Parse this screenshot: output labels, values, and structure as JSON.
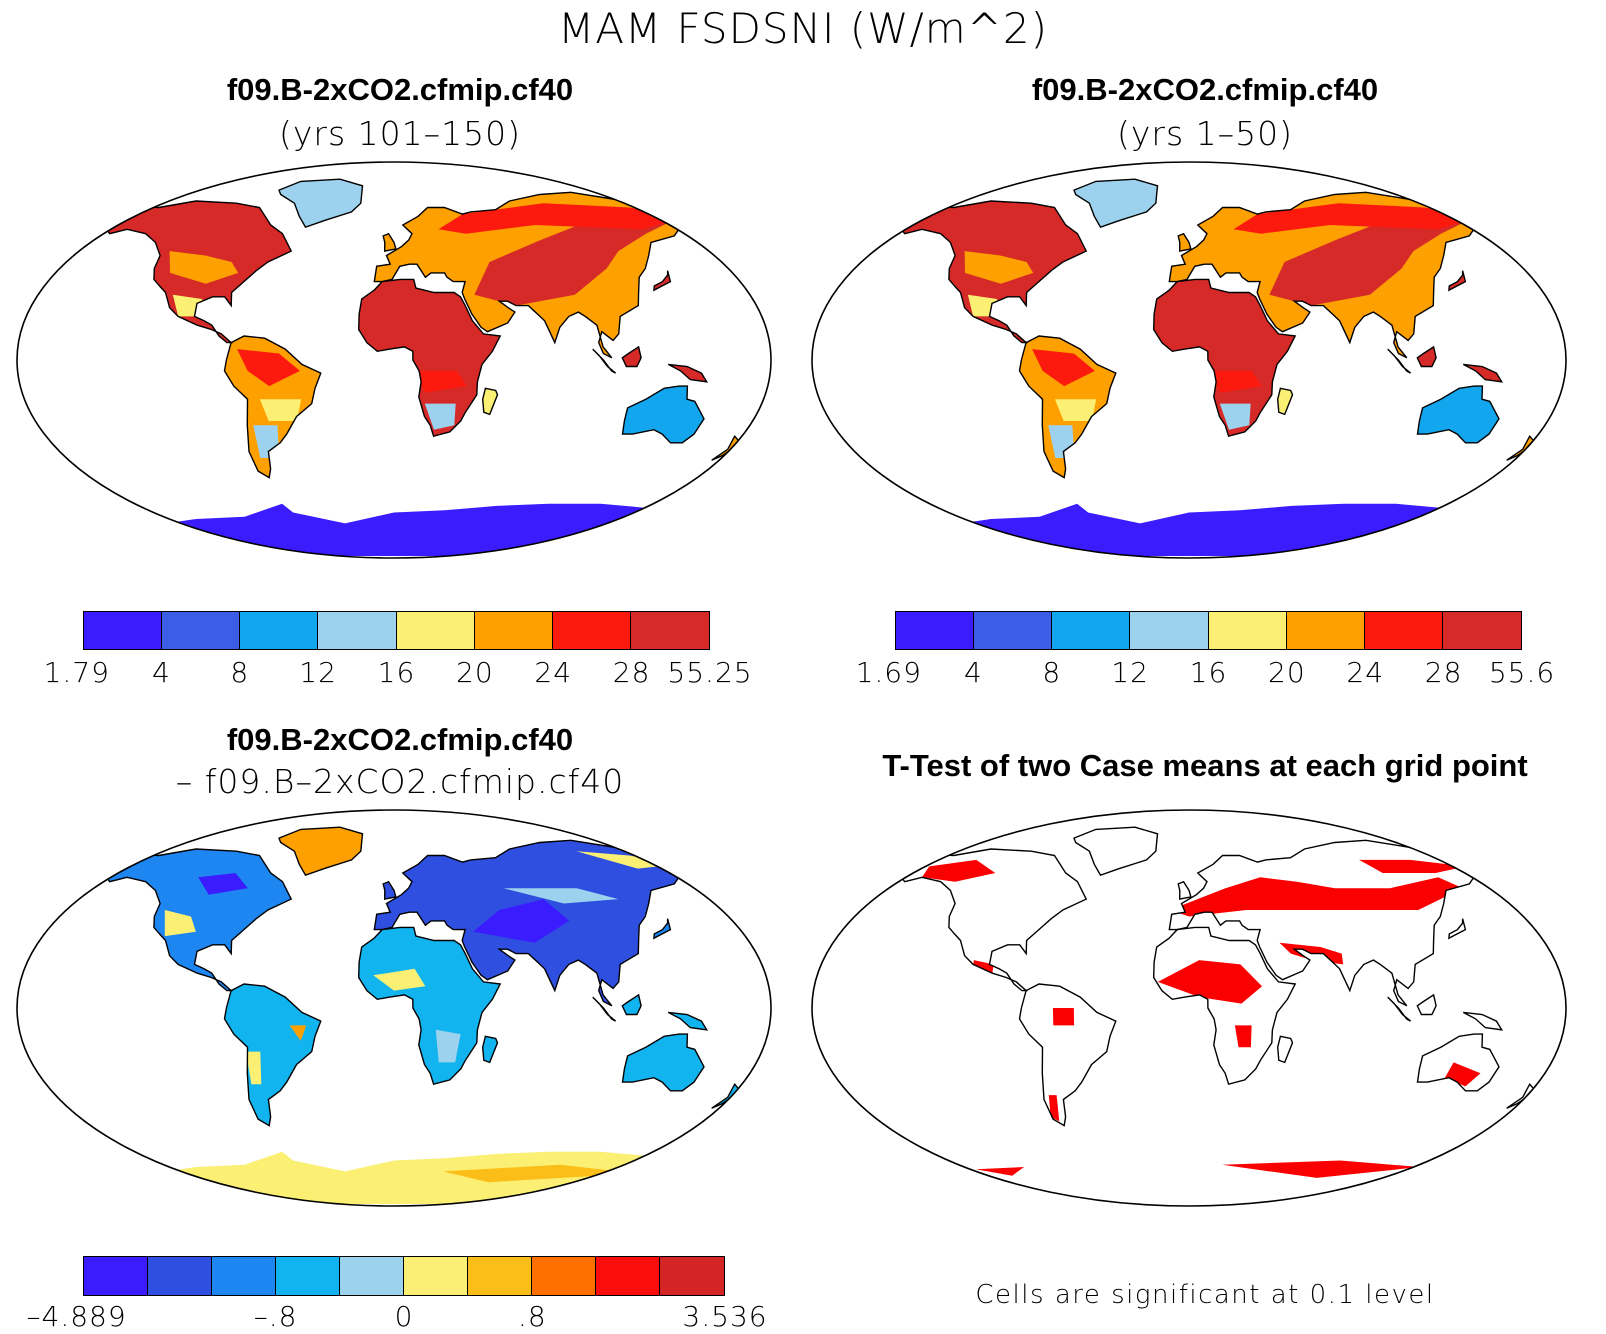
{
  "title": "MAM FSDSNI (W/m^2)",
  "panels": [
    {
      "title": "f09.B-2xCO2.cfmip.cf40",
      "subtitle": "(yrs 101–150)",
      "legend": {
        "colors": [
          "#3a1cff",
          "#3c5ee6",
          "#12a6ee",
          "#9dd2ee",
          "#fbf073",
          "#fea000",
          "#fb1a0d",
          "#d62a28"
        ],
        "labels": [
          "1.79",
          "4",
          "8",
          "12",
          "16",
          "20",
          "24",
          "28",
          "55.25"
        ]
      }
    },
    {
      "title": "f09.B-2xCO2.cfmip.cf40",
      "subtitle": "(yrs 1–50)",
      "legend": {
        "colors": [
          "#3a1cff",
          "#3c5ee6",
          "#12a6ee",
          "#9dd2ee",
          "#fbf073",
          "#fea000",
          "#fb1a0d",
          "#d62a28"
        ],
        "labels": [
          "1.69",
          "4",
          "8",
          "12",
          "16",
          "20",
          "24",
          "28",
          "55.6"
        ]
      }
    },
    {
      "title": "f09.B-2xCO2.cfmip.cf40",
      "subtitle": "– f09.B–2xCO2.cfmip.cf40",
      "legend": {
        "colors": [
          "#3a1cff",
          "#2f4fe0",
          "#1e86f0",
          "#12b4f0",
          "#9dd2ee",
          "#fbf073",
          "#fbbd18",
          "#fd7000",
          "#fb0d0d",
          "#d42525"
        ],
        "labels": [
          "–4.889",
          "–.8",
          "0",
          ".8",
          "3.536"
        ]
      }
    },
    {
      "title": "T-Test of two Case means at each grid point",
      "note": "Cells are significant at 0.1 level"
    }
  ],
  "colors": {
    "significant": "#fb0000",
    "coast": "#000000",
    "ocean": "#ffffff"
  }
}
